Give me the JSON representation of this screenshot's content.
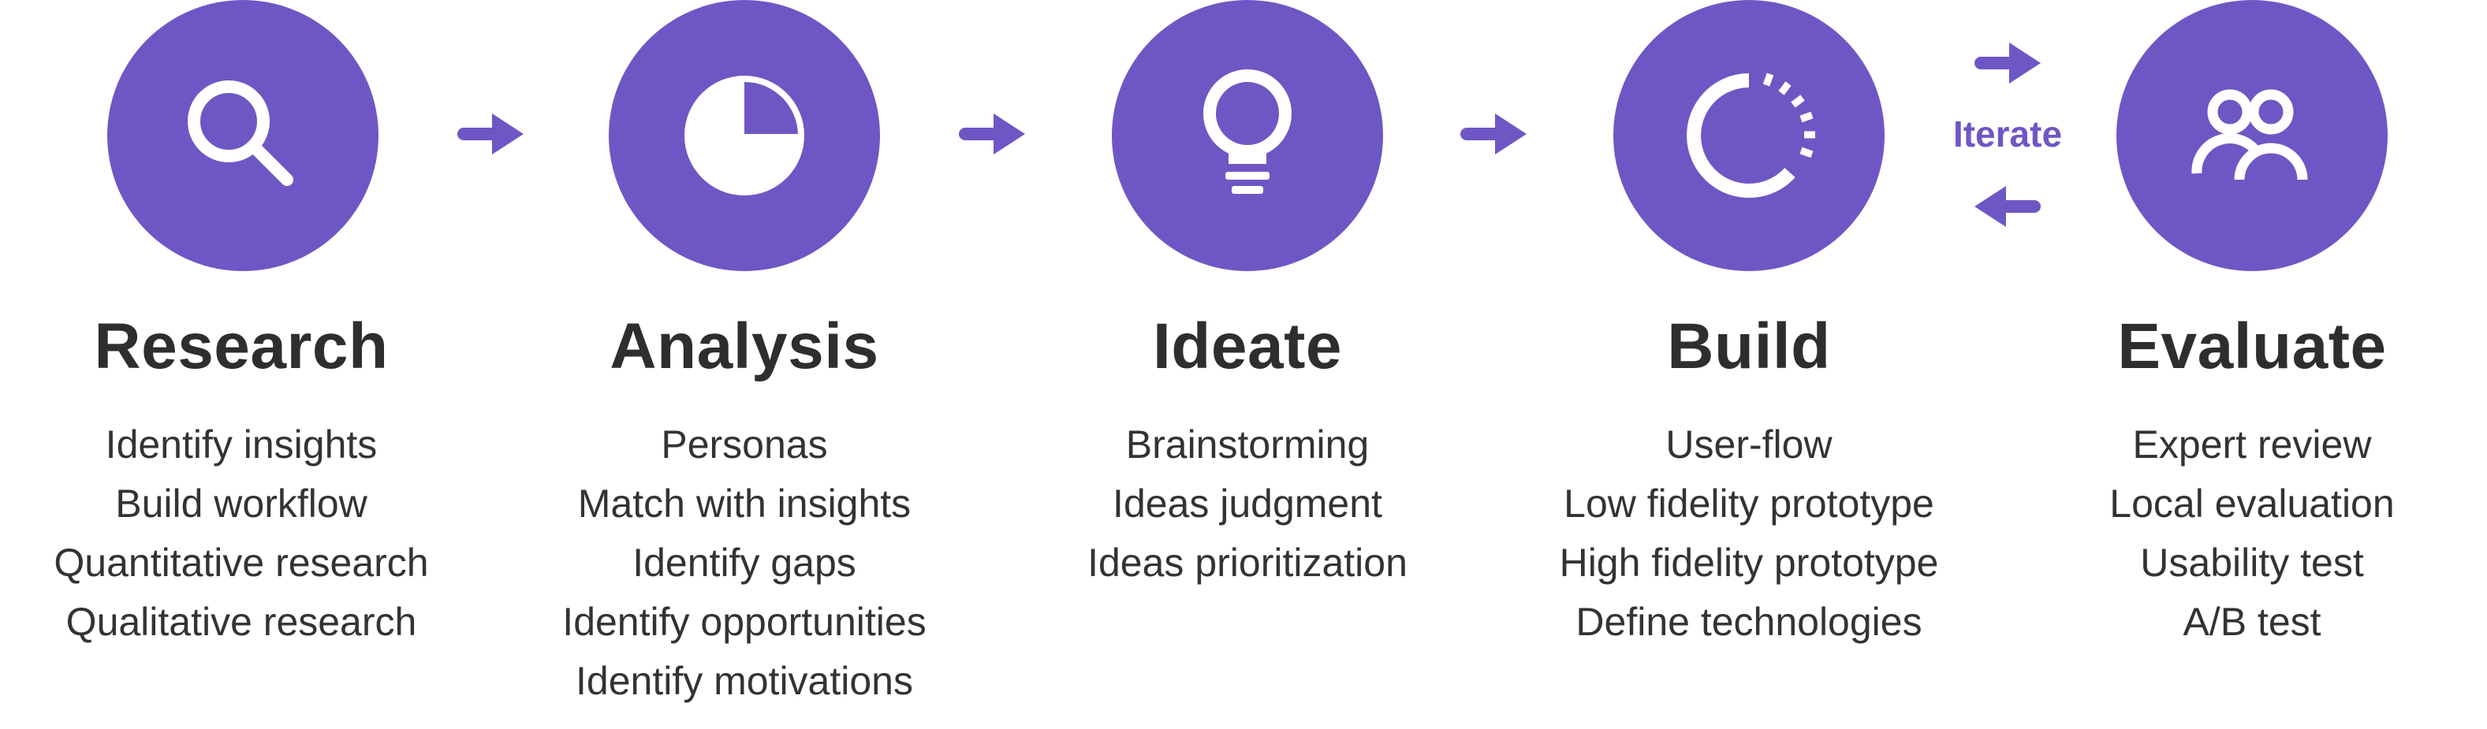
{
  "colors": {
    "accent": "#6e57c4",
    "text": "#333333",
    "title": "#2e2e2e",
    "background": "#ffffff"
  },
  "iterate_label": "Iterate",
  "stages": [
    {
      "icon": "search-icon",
      "title": "Research",
      "items": [
        "Identify insights",
        "Build workflow",
        "Quantitative research",
        "Qualitative research"
      ]
    },
    {
      "icon": "pie-chart-icon",
      "title": "Analysis",
      "items": [
        "Personas",
        "Match with insights",
        "Identify gaps",
        "Identify opportunities",
        "Identify motivations"
      ]
    },
    {
      "icon": "lightbulb-icon",
      "title": "Ideate",
      "items": [
        "Brainstorming",
        "Ideas judgment",
        "Ideas prioritization"
      ]
    },
    {
      "icon": "progress-ring-icon",
      "title": "Build",
      "items": [
        "User-flow",
        "Low fidelity prototype",
        "High fidelity prototype",
        "Define technologies"
      ]
    },
    {
      "icon": "users-icon",
      "title": "Evaluate",
      "items": [
        "Expert review",
        "Local evaluation",
        "Usability test",
        "A/B test"
      ]
    }
  ]
}
